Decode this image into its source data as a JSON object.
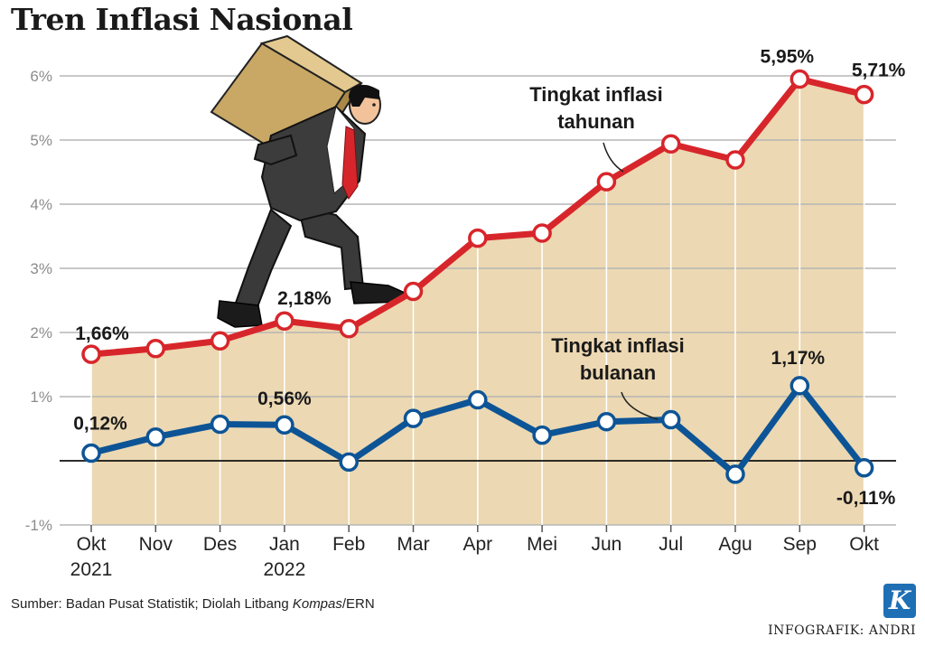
{
  "page": {
    "title": "Tren Inflasi Nasional",
    "source_prefix": "Sumber: Badan Pusat Statistik; Diolah Litbang ",
    "source_italic": "Kompas",
    "source_suffix": "/ERN",
    "credit": "INFOGRAFIK: ANDRI",
    "logo_letter": "K"
  },
  "chart_data": {
    "type": "line",
    "title": "Tren Inflasi Nasional",
    "categories": [
      "Okt 2021",
      "Nov",
      "Des",
      "Jan 2022",
      "Feb",
      "Mar",
      "Apr",
      "Mei",
      "Jun",
      "Jul",
      "Agu",
      "Sep",
      "Okt"
    ],
    "x_tick_labels": [
      [
        "Okt",
        "2021"
      ],
      [
        "Nov"
      ],
      [
        "Des"
      ],
      [
        "Jan",
        "2022"
      ],
      [
        "Feb"
      ],
      [
        "Mar"
      ],
      [
        "Apr"
      ],
      [
        "Mei"
      ],
      [
        "Jun"
      ],
      [
        "Jul"
      ],
      [
        "Agu"
      ],
      [
        "Sep"
      ],
      [
        "Okt"
      ]
    ],
    "y_ticks": [
      {
        "value": -1,
        "label": "-1%"
      },
      {
        "value": 0,
        "label": ""
      },
      {
        "value": 1,
        "label": "1%"
      },
      {
        "value": 2,
        "label": "2%"
      },
      {
        "value": 3,
        "label": "3%"
      },
      {
        "value": 4,
        "label": "4%"
      },
      {
        "value": 5,
        "label": "5%"
      },
      {
        "value": 6,
        "label": "6%"
      }
    ],
    "ylim": [
      -1,
      6.5
    ],
    "grid": true,
    "series": [
      {
        "name": "Tingkat inflasi tahunan",
        "name_lines": [
          "Tingkat inflasi",
          "tahunan"
        ],
        "color": "#d7262b",
        "filled": true,
        "fill_color": "#ecd8b2",
        "values": [
          1.66,
          1.75,
          1.87,
          2.18,
          2.06,
          2.64,
          3.47,
          3.55,
          4.35,
          4.94,
          4.69,
          5.95,
          5.71
        ],
        "labels": [
          {
            "index": 0,
            "text": "1,66%"
          },
          {
            "index": 3,
            "text": "2,18%"
          },
          {
            "index": 11,
            "text": "5,95%"
          },
          {
            "index": 12,
            "text": "5,71%"
          }
        ]
      },
      {
        "name": "Tingkat inflasi bulanan",
        "name_lines": [
          "Tingkat inflasi",
          "bulanan"
        ],
        "color": "#0d5496",
        "filled": false,
        "values": [
          0.12,
          0.37,
          0.57,
          0.56,
          -0.02,
          0.66,
          0.95,
          0.4,
          0.61,
          0.64,
          -0.21,
          1.17,
          -0.11
        ],
        "labels": [
          {
            "index": 0,
            "text": "0,12%"
          },
          {
            "index": 3,
            "text": "0,56%"
          },
          {
            "index": 11,
            "text": "1,17%"
          },
          {
            "index": 12,
            "text": "-0,11%"
          }
        ]
      }
    ]
  }
}
